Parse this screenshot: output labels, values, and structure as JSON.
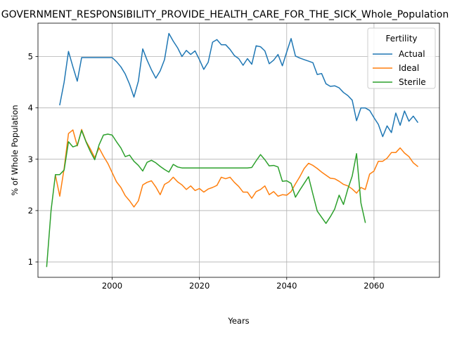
{
  "chart_data": {
    "type": "line",
    "title": "GOVERNMENT_RESPONSIBILITY_PROVIDE_HEALTH_CARE_FOR_THE_SICK_Whole_Population",
    "xlabel": "Years",
    "ylabel": "% of Whole Population",
    "xlim": [
      1983,
      2075
    ],
    "ylim": [
      0.7,
      5.65
    ],
    "xticks": [
      2000,
      2020,
      2040,
      2060
    ],
    "yticks": [
      1,
      2,
      3,
      4,
      5
    ],
    "grid": true,
    "legend": {
      "title": "Fertility",
      "placement": "top-right"
    },
    "series": [
      {
        "name": "Actual",
        "color": "#1f77b4",
        "points": [
          [
            1988,
            4.06
          ],
          [
            1989,
            4.5
          ],
          [
            1990,
            5.1
          ],
          [
            1991,
            4.8
          ],
          [
            1992,
            4.52
          ],
          [
            1993,
            4.98
          ],
          [
            1994,
            4.98
          ],
          [
            1995,
            4.98
          ],
          [
            1996,
            4.98
          ],
          [
            1997,
            4.98
          ],
          [
            1998,
            4.98
          ],
          [
            1999,
            4.98
          ],
          [
            2000,
            4.98
          ],
          [
            2001,
            4.9
          ],
          [
            2002,
            4.8
          ],
          [
            2003,
            4.66
          ],
          [
            2004,
            4.46
          ],
          [
            2005,
            4.21
          ],
          [
            2006,
            4.52
          ],
          [
            2007,
            5.15
          ],
          [
            2008,
            4.93
          ],
          [
            2009,
            4.74
          ],
          [
            2010,
            4.58
          ],
          [
            2011,
            4.72
          ],
          [
            2012,
            4.94
          ],
          [
            2013,
            5.45
          ],
          [
            2014,
            5.3
          ],
          [
            2015,
            5.17
          ],
          [
            2016,
            5.0
          ],
          [
            2017,
            5.12
          ],
          [
            2018,
            5.04
          ],
          [
            2019,
            5.11
          ],
          [
            2020,
            4.94
          ],
          [
            2021,
            4.75
          ],
          [
            2022,
            4.89
          ],
          [
            2023,
            5.28
          ],
          [
            2024,
            5.33
          ],
          [
            2025,
            5.23
          ],
          [
            2026,
            5.23
          ],
          [
            2027,
            5.14
          ],
          [
            2028,
            5.02
          ],
          [
            2029,
            4.96
          ],
          [
            2030,
            4.83
          ],
          [
            2031,
            4.96
          ],
          [
            2032,
            4.85
          ],
          [
            2033,
            5.21
          ],
          [
            2034,
            5.19
          ],
          [
            2035,
            5.11
          ],
          [
            2036,
            4.86
          ],
          [
            2037,
            4.93
          ],
          [
            2038,
            5.04
          ],
          [
            2039,
            4.82
          ],
          [
            2040,
            5.09
          ],
          [
            2041,
            5.35
          ],
          [
            2042,
            5.01
          ],
          [
            2043,
            4.97
          ],
          [
            2044,
            4.94
          ],
          [
            2045,
            4.91
          ],
          [
            2046,
            4.88
          ],
          [
            2047,
            4.65
          ],
          [
            2048,
            4.67
          ],
          [
            2049,
            4.47
          ],
          [
            2050,
            4.42
          ],
          [
            2051,
            4.43
          ],
          [
            2052,
            4.39
          ],
          [
            2053,
            4.3
          ],
          [
            2054,
            4.24
          ],
          [
            2055,
            4.15
          ],
          [
            2056,
            3.75
          ],
          [
            2057,
            4.0
          ],
          [
            2058,
            4.0
          ],
          [
            2059,
            3.95
          ],
          [
            2060,
            3.81
          ],
          [
            2061,
            3.68
          ],
          [
            2062,
            3.44
          ],
          [
            2063,
            3.65
          ],
          [
            2064,
            3.52
          ],
          [
            2065,
            3.9
          ],
          [
            2066,
            3.66
          ],
          [
            2067,
            3.94
          ],
          [
            2068,
            3.74
          ],
          [
            2069,
            3.84
          ],
          [
            2070,
            3.72
          ]
        ]
      },
      {
        "name": "Ideal",
        "color": "#ff7f0e",
        "points": [
          [
            1987,
            2.69
          ],
          [
            1988,
            2.28
          ],
          [
            1989,
            2.82
          ],
          [
            1990,
            3.5
          ],
          [
            1991,
            3.57
          ],
          [
            1992,
            3.26
          ],
          [
            1993,
            3.58
          ],
          [
            1994,
            3.35
          ],
          [
            1995,
            3.2
          ],
          [
            1996,
            3.03
          ],
          [
            1997,
            3.22
          ],
          [
            1998,
            3.06
          ],
          [
            1999,
            2.92
          ],
          [
            2000,
            2.74
          ],
          [
            2001,
            2.56
          ],
          [
            2002,
            2.45
          ],
          [
            2003,
            2.29
          ],
          [
            2004,
            2.19
          ],
          [
            2005,
            2.07
          ],
          [
            2006,
            2.19
          ],
          [
            2007,
            2.5
          ],
          [
            2008,
            2.55
          ],
          [
            2009,
            2.58
          ],
          [
            2010,
            2.46
          ],
          [
            2011,
            2.31
          ],
          [
            2012,
            2.51
          ],
          [
            2013,
            2.56
          ],
          [
            2014,
            2.65
          ],
          [
            2015,
            2.56
          ],
          [
            2016,
            2.5
          ],
          [
            2017,
            2.41
          ],
          [
            2018,
            2.48
          ],
          [
            2019,
            2.39
          ],
          [
            2020,
            2.43
          ],
          [
            2021,
            2.36
          ],
          [
            2022,
            2.42
          ],
          [
            2023,
            2.45
          ],
          [
            2024,
            2.49
          ],
          [
            2025,
            2.65
          ],
          [
            2026,
            2.62
          ],
          [
            2027,
            2.65
          ],
          [
            2028,
            2.55
          ],
          [
            2029,
            2.47
          ],
          [
            2030,
            2.36
          ],
          [
            2031,
            2.36
          ],
          [
            2032,
            2.24
          ],
          [
            2033,
            2.37
          ],
          [
            2034,
            2.41
          ],
          [
            2035,
            2.48
          ],
          [
            2036,
            2.31
          ],
          [
            2037,
            2.37
          ],
          [
            2038,
            2.28
          ],
          [
            2039,
            2.31
          ],
          [
            2040,
            2.3
          ],
          [
            2041,
            2.37
          ],
          [
            2042,
            2.52
          ],
          [
            2043,
            2.66
          ],
          [
            2044,
            2.82
          ],
          [
            2045,
            2.92
          ],
          [
            2046,
            2.88
          ],
          [
            2047,
            2.82
          ],
          [
            2048,
            2.75
          ],
          [
            2049,
            2.69
          ],
          [
            2050,
            2.63
          ],
          [
            2051,
            2.62
          ],
          [
            2052,
            2.57
          ],
          [
            2053,
            2.51
          ],
          [
            2054,
            2.48
          ],
          [
            2055,
            2.42
          ],
          [
            2056,
            2.34
          ],
          [
            2057,
            2.45
          ],
          [
            2058,
            2.41
          ],
          [
            2059,
            2.71
          ],
          [
            2060,
            2.77
          ],
          [
            2061,
            2.96
          ],
          [
            2062,
            2.96
          ],
          [
            2063,
            3.02
          ],
          [
            2064,
            3.13
          ],
          [
            2065,
            3.13
          ],
          [
            2066,
            3.22
          ],
          [
            2067,
            3.12
          ],
          [
            2068,
            3.05
          ],
          [
            2069,
            2.93
          ],
          [
            2070,
            2.86
          ]
        ]
      },
      {
        "name": "Sterile",
        "color": "#2ca02c",
        "points": [
          [
            1985,
            0.91
          ],
          [
            1986,
            2.0
          ],
          [
            1987,
            2.7
          ],
          [
            1988,
            2.7
          ],
          [
            1989,
            2.79
          ],
          [
            1990,
            3.34
          ],
          [
            1991,
            3.24
          ],
          [
            1992,
            3.27
          ],
          [
            1993,
            3.56
          ],
          [
            1994,
            3.34
          ],
          [
            1995,
            3.15
          ],
          [
            1996,
            2.99
          ],
          [
            1997,
            3.28
          ],
          [
            1998,
            3.47
          ],
          [
            1999,
            3.49
          ],
          [
            2000,
            3.47
          ],
          [
            2001,
            3.34
          ],
          [
            2002,
            3.22
          ],
          [
            2003,
            3.05
          ],
          [
            2004,
            3.08
          ],
          [
            2005,
            2.96
          ],
          [
            2006,
            2.88
          ],
          [
            2007,
            2.77
          ],
          [
            2008,
            2.94
          ],
          [
            2009,
            2.98
          ],
          [
            2010,
            2.93
          ],
          [
            2011,
            2.86
          ],
          [
            2012,
            2.8
          ],
          [
            2013,
            2.75
          ],
          [
            2014,
            2.9
          ],
          [
            2015,
            2.85
          ],
          [
            2016,
            2.83
          ],
          [
            2017,
            2.83
          ],
          [
            2018,
            2.83
          ],
          [
            2019,
            2.83
          ],
          [
            2020,
            2.83
          ],
          [
            2021,
            2.83
          ],
          [
            2022,
            2.83
          ],
          [
            2023,
            2.83
          ],
          [
            2024,
            2.83
          ],
          [
            2025,
            2.83
          ],
          [
            2026,
            2.83
          ],
          [
            2027,
            2.83
          ],
          [
            2028,
            2.83
          ],
          [
            2029,
            2.83
          ],
          [
            2030,
            2.83
          ],
          [
            2031,
            2.83
          ],
          [
            2032,
            2.84
          ],
          [
            2033,
            2.97
          ],
          [
            2034,
            3.09
          ],
          [
            2035,
            2.99
          ],
          [
            2036,
            2.87
          ],
          [
            2037,
            2.88
          ],
          [
            2038,
            2.85
          ],
          [
            2039,
            2.57
          ],
          [
            2040,
            2.58
          ],
          [
            2041,
            2.53
          ],
          [
            2042,
            2.26
          ],
          [
            2043,
            2.4
          ],
          [
            2044,
            2.53
          ],
          [
            2045,
            2.66
          ],
          [
            2046,
            2.32
          ],
          [
            2047,
            1.99
          ],
          [
            2048,
            1.87
          ],
          [
            2049,
            1.75
          ],
          [
            2050,
            1.88
          ],
          [
            2051,
            2.03
          ],
          [
            2052,
            2.3
          ],
          [
            2053,
            2.12
          ],
          [
            2054,
            2.42
          ],
          [
            2055,
            2.67
          ],
          [
            2056,
            3.11
          ],
          [
            2057,
            2.15
          ],
          [
            2058,
            1.77
          ]
        ]
      }
    ]
  }
}
